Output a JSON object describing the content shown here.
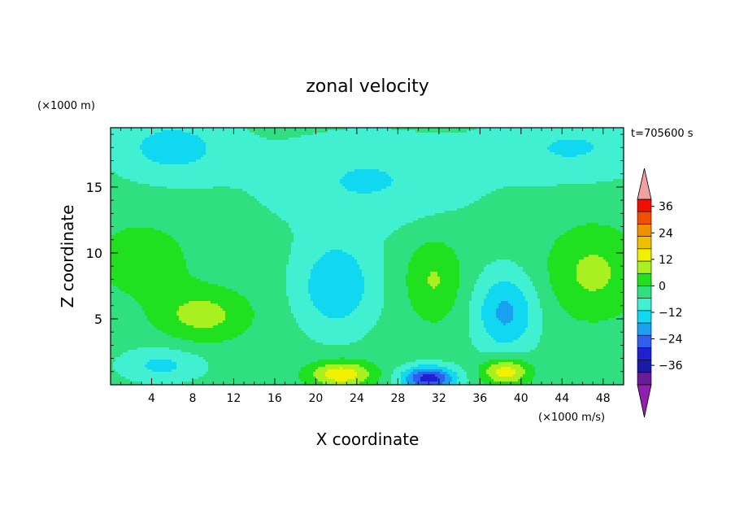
{
  "chart_data": {
    "type": "heatmap",
    "title": "zonal velocity",
    "xlabel": "X coordinate",
    "ylabel": "Z coordinate",
    "y_unit": "(×1000 m)",
    "colorbar_unit": "(×1000 m/s)",
    "time_label": "t=705600 s",
    "xlim": [
      0,
      50
    ],
    "ylim": [
      0,
      19.5
    ],
    "x_ticks": [
      4,
      8,
      12,
      16,
      20,
      24,
      28,
      32,
      36,
      40,
      44,
      48
    ],
    "y_ticks": [
      5,
      10,
      15
    ],
    "colorbar": {
      "levels": [
        -42,
        -36,
        -30,
        -24,
        -18,
        -12,
        -6,
        0,
        6,
        12,
        18,
        24,
        30,
        36,
        42
      ],
      "tick_labels": [
        "36",
        "24",
        "12",
        "0",
        "−12",
        "−24",
        "−36"
      ],
      "tick_values": [
        36,
        24,
        12,
        0,
        -12,
        -24,
        -36
      ],
      "colors": [
        "#6a1b9a",
        "#1a1aa8",
        "#2020d0",
        "#2e5ef0",
        "#1aa0f0",
        "#10d8f0",
        "#40f0d0",
        "#30e080",
        "#20e020",
        "#a8f020",
        "#f0f000",
        "#f0c000",
        "#f09000",
        "#f05000",
        "#f01000"
      ],
      "under_color": "#9020b0",
      "over_color": "#f0a0a0"
    },
    "field_features": [
      {
        "x": 22.5,
        "z": 0.8,
        "value": 20,
        "sx": 3.2,
        "sz": 1.0
      },
      {
        "x": 31,
        "z": 0.5,
        "value": -30,
        "sx": 2.6,
        "sz": 0.9
      },
      {
        "x": 38.5,
        "z": 1.0,
        "value": 20,
        "sx": 2.3,
        "sz": 1.0
      },
      {
        "x": 9,
        "z": 5.3,
        "value": 12,
        "sx": 4.5,
        "sz": 2.0
      },
      {
        "x": 22,
        "z": 7.5,
        "value": -14,
        "sx": 3.8,
        "sz": 3.5
      },
      {
        "x": 31.5,
        "z": 8.0,
        "value": 10,
        "sx": 2.8,
        "sz": 3.2
      },
      {
        "x": 38.5,
        "z": 5.5,
        "value": -16,
        "sx": 3.0,
        "sz": 3.0
      },
      {
        "x": 47,
        "z": 8.5,
        "value": 11,
        "sx": 4.5,
        "sz": 3.5
      },
      {
        "x": 3,
        "z": 9.5,
        "value": 7,
        "sx": 5,
        "sz": 3
      },
      {
        "x": 5,
        "z": 1.5,
        "value": -10,
        "sx": 4,
        "sz": 1.3
      },
      {
        "x": 25,
        "z": 15.5,
        "value": -9,
        "sx": 10,
        "sz": 3.5
      },
      {
        "x": 6,
        "z": 18,
        "value": -11,
        "sx": 6,
        "sz": 2.5
      },
      {
        "x": 45,
        "z": 18,
        "value": -9,
        "sx": 8,
        "sz": 2.5
      }
    ]
  }
}
